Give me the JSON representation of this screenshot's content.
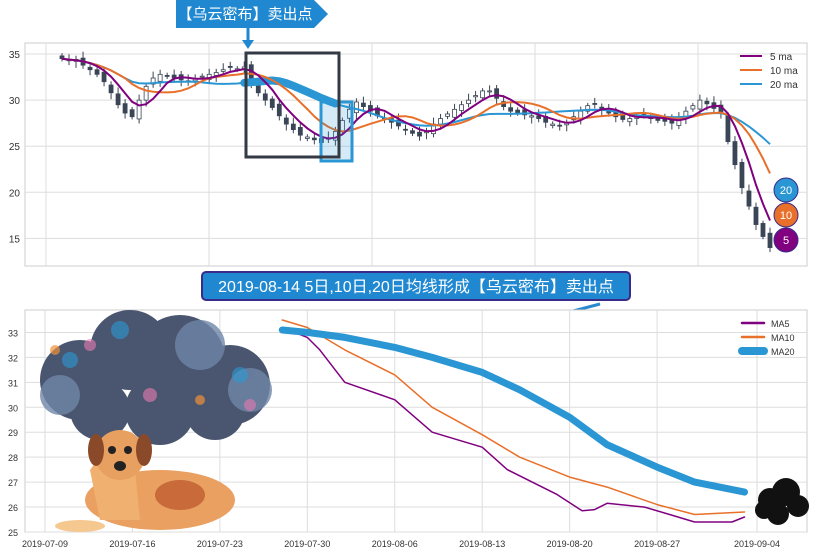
{
  "top_banner": "【乌云密布】卖出点",
  "mid_banner": "2019-08-14 5日,10日,20日均线形成【乌云密布】卖出点",
  "colors": {
    "ma5": "#800080",
    "ma10": "#e8702a",
    "ma20": "#2a96d4",
    "candle": "#3a4556",
    "banner": "#1f88d0",
    "banner_border": "#3a2a8a"
  },
  "chart_data": [
    {
      "type": "line",
      "title": "",
      "yticks": [
        15,
        20,
        25,
        30,
        35
      ],
      "ylim": [
        12,
        36.2
      ],
      "legend": [
        "5 ma",
        "10 ma",
        "20 ma"
      ],
      "legend_position": "top-right",
      "markers": [
        "20",
        "10",
        "5"
      ],
      "closes": [
        34.5,
        34.3,
        34.2,
        33.8,
        33.3,
        32.8,
        32,
        30.8,
        29.5,
        28.6,
        28.2,
        30,
        31.5,
        32.4,
        32.8,
        32.6,
        32.4,
        32.2,
        32.1,
        32.3,
        32.6,
        32.8,
        33,
        33.3,
        33.6,
        33.4,
        33.6,
        32,
        30.8,
        30,
        29.2,
        28.3,
        27.4,
        26.8,
        26.2,
        26,
        25.7,
        25.4,
        25.9,
        26.6,
        27.8,
        29,
        29.8,
        29.3,
        28.8,
        28.3,
        28,
        27.6,
        27.2,
        26.8,
        26.4,
        26.1,
        26.6,
        27.4,
        28,
        28.5,
        29,
        29.5,
        30,
        30.5,
        31,
        31,
        30.2,
        29.3,
        28.8,
        28.6,
        28.4,
        28.3,
        28,
        27.6,
        27.4,
        27.2,
        27.5,
        28.2,
        28.8,
        29.4,
        29.6,
        29,
        28.6,
        28.2,
        27.9,
        28,
        28.2,
        28.4,
        28.1,
        27.8,
        27.7,
        27.5,
        28,
        28.8,
        29.4,
        30,
        29.6,
        29.1,
        28.6,
        25.5,
        23,
        20.5,
        18.5,
        16.5,
        15.2,
        14
      ]
    },
    {
      "type": "line",
      "xticks": [
        "2019-07-09",
        "2019-07-16",
        "2019-07-23",
        "2019-07-30",
        "2019-08-06",
        "2019-08-13",
        "2019-08-20",
        "2019-08-27",
        "2019-09-04"
      ],
      "xtick_days": [
        0,
        7,
        14,
        21,
        28,
        35,
        42,
        49,
        57
      ],
      "yticks": [
        25,
        26,
        27,
        28,
        29,
        30,
        31,
        32,
        33
      ],
      "ylim": [
        25,
        33.9
      ],
      "xlim_days": [
        -1.6,
        61
      ],
      "legend_position": "top-right",
      "series": [
        {
          "name": "MA5",
          "days": [
            19,
            21,
            22,
            24,
            28,
            31,
            35,
            37,
            41,
            43,
            44,
            45,
            48,
            50,
            52,
            55,
            56
          ],
          "values": [
            33.2,
            32.8,
            32.3,
            31.0,
            30.3,
            29.0,
            28.4,
            27.5,
            26.5,
            25.85,
            25.9,
            26.15,
            26.0,
            25.7,
            25.4,
            25.4,
            25.6
          ]
        },
        {
          "name": "MA10",
          "days": [
            19,
            21,
            24,
            28,
            31,
            35,
            38,
            42,
            45,
            49,
            52,
            56
          ],
          "values": [
            33.5,
            33.2,
            32.3,
            31.3,
            30.0,
            28.9,
            28.0,
            27.2,
            26.8,
            26.1,
            25.7,
            25.8
          ]
        },
        {
          "name": "MA20",
          "days": [
            19,
            21,
            24,
            28,
            31,
            35,
            38,
            42,
            45,
            49,
            52,
            56
          ],
          "values": [
            33.1,
            33.0,
            32.8,
            32.4,
            32.0,
            31.4,
            30.7,
            29.6,
            28.5,
            27.6,
            27.0,
            26.6
          ]
        }
      ]
    }
  ]
}
